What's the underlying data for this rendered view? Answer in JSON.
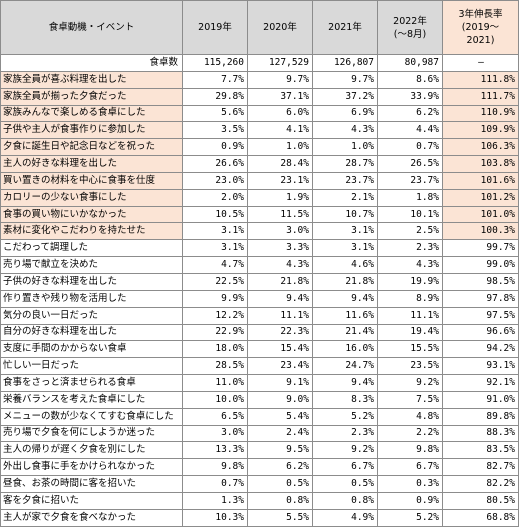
{
  "header": {
    "event": "食卓動機・イベント",
    "y2019": "2019年",
    "y2020": "2020年",
    "y2021": "2021年",
    "y2022_line1": "2022年",
    "y2022_line2": "(〜8月)",
    "growth_line1": "3年伸長率",
    "growth_line2": "(2019〜",
    "growth_line3": "2021)"
  },
  "count_row": {
    "label": "食卓数",
    "v2019": "115,260",
    "v2020": "127,529",
    "v2021": "126,807",
    "v2022": "80,987",
    "growth": "—"
  },
  "rows": [
    {
      "label": "家族全員が喜ぶ料理を出した",
      "v2019": "7.7%",
      "v2020": "9.7%",
      "v2021": "9.7%",
      "v2022": "8.6%",
      "growth": "111.8%",
      "hl": true
    },
    {
      "label": "家族全員が揃った夕食だった",
      "v2019": "29.8%",
      "v2020": "37.1%",
      "v2021": "37.2%",
      "v2022": "33.9%",
      "growth": "111.7%",
      "hl": true
    },
    {
      "label": "家族みんなで楽しめる食卓にした",
      "v2019": "5.6%",
      "v2020": "6.0%",
      "v2021": "6.9%",
      "v2022": "6.2%",
      "growth": "110.9%",
      "hl": true
    },
    {
      "label": "子供や主人が食事作りに参加した",
      "v2019": "3.5%",
      "v2020": "4.1%",
      "v2021": "4.3%",
      "v2022": "4.4%",
      "growth": "109.9%",
      "hl": true
    },
    {
      "label": "夕食に誕生日や記念日などを祝った",
      "v2019": "0.9%",
      "v2020": "1.0%",
      "v2021": "1.0%",
      "v2022": "0.7%",
      "growth": "106.3%",
      "hl": true
    },
    {
      "label": "主人の好きな料理を出した",
      "v2019": "26.6%",
      "v2020": "28.4%",
      "v2021": "28.7%",
      "v2022": "26.5%",
      "growth": "103.8%",
      "hl": true
    },
    {
      "label": "買い置きの材料を中心に食事を仕度",
      "v2019": "23.0%",
      "v2020": "23.1%",
      "v2021": "23.7%",
      "v2022": "23.7%",
      "growth": "101.6%",
      "hl": true
    },
    {
      "label": "カロリーの少ない食事にした",
      "v2019": "2.0%",
      "v2020": "1.9%",
      "v2021": "2.1%",
      "v2022": "1.8%",
      "growth": "101.2%",
      "hl": true
    },
    {
      "label": "食事の買い物にいかなかった",
      "v2019": "10.5%",
      "v2020": "11.5%",
      "v2021": "10.7%",
      "v2022": "10.1%",
      "growth": "101.0%",
      "hl": true
    },
    {
      "label": "素材に変化やこだわりを持たせた",
      "v2019": "3.1%",
      "v2020": "3.0%",
      "v2021": "3.1%",
      "v2022": "2.5%",
      "growth": "100.3%",
      "hl": true
    },
    {
      "label": "こだわって調理した",
      "v2019": "3.1%",
      "v2020": "3.3%",
      "v2021": "3.1%",
      "v2022": "2.3%",
      "growth": "99.7%",
      "hl": false
    },
    {
      "label": "売り場で献立を決めた",
      "v2019": "4.7%",
      "v2020": "4.3%",
      "v2021": "4.6%",
      "v2022": "4.3%",
      "growth": "99.0%",
      "hl": false
    },
    {
      "label": "子供の好きな料理を出した",
      "v2019": "22.5%",
      "v2020": "21.8%",
      "v2021": "21.8%",
      "v2022": "19.9%",
      "growth": "98.5%",
      "hl": false
    },
    {
      "label": "作り置きや残り物を活用した",
      "v2019": "9.9%",
      "v2020": "9.4%",
      "v2021": "9.4%",
      "v2022": "8.9%",
      "growth": "97.8%",
      "hl": false
    },
    {
      "label": "気分の良い一日だった",
      "v2019": "12.2%",
      "v2020": "11.1%",
      "v2021": "11.6%",
      "v2022": "11.1%",
      "growth": "97.5%",
      "hl": false
    },
    {
      "label": "自分の好きな料理を出した",
      "v2019": "22.9%",
      "v2020": "22.3%",
      "v2021": "21.4%",
      "v2022": "19.4%",
      "growth": "96.6%",
      "hl": false
    },
    {
      "label": "支度に手間のかからない食卓",
      "v2019": "18.0%",
      "v2020": "15.4%",
      "v2021": "16.0%",
      "v2022": "15.5%",
      "growth": "94.2%",
      "hl": false
    },
    {
      "label": "忙しい一日だった",
      "v2019": "28.5%",
      "v2020": "23.4%",
      "v2021": "24.7%",
      "v2022": "23.5%",
      "growth": "93.1%",
      "hl": false
    },
    {
      "label": "食事をさっと済ませられる食卓",
      "v2019": "11.0%",
      "v2020": "9.1%",
      "v2021": "9.4%",
      "v2022": "9.2%",
      "growth": "92.1%",
      "hl": false
    },
    {
      "label": "栄養バランスを考えた食卓にした",
      "v2019": "10.0%",
      "v2020": "9.0%",
      "v2021": "8.3%",
      "v2022": "7.5%",
      "growth": "91.0%",
      "hl": false
    },
    {
      "label": "メニューの数が少なくてすむ食卓にした",
      "v2019": "6.5%",
      "v2020": "5.4%",
      "v2021": "5.2%",
      "v2022": "4.8%",
      "growth": "89.8%",
      "hl": false
    },
    {
      "label": "売り場で夕食を何にしようか迷った",
      "v2019": "3.0%",
      "v2020": "2.4%",
      "v2021": "2.3%",
      "v2022": "2.2%",
      "growth": "88.3%",
      "hl": false
    },
    {
      "label": "主人の帰りが遅く夕食を別にした",
      "v2019": "13.3%",
      "v2020": "9.5%",
      "v2021": "9.2%",
      "v2022": "9.8%",
      "growth": "83.5%",
      "hl": false
    },
    {
      "label": "外出し食事に手をかけられなかった",
      "v2019": "9.8%",
      "v2020": "6.2%",
      "v2021": "6.7%",
      "v2022": "6.7%",
      "growth": "82.7%",
      "hl": false
    },
    {
      "label": "昼食、お茶の時間に客を招いた",
      "v2019": "0.7%",
      "v2020": "0.5%",
      "v2021": "0.5%",
      "v2022": "0.3%",
      "growth": "82.2%",
      "hl": false
    },
    {
      "label": "客を夕食に招いた",
      "v2019": "1.3%",
      "v2020": "0.8%",
      "v2021": "0.8%",
      "v2022": "0.9%",
      "growth": "80.5%",
      "hl": false
    },
    {
      "label": "主人が家で夕食を食べなかった",
      "v2019": "10.3%",
      "v2020": "5.5%",
      "v2021": "4.9%",
      "v2022": "5.2%",
      "growth": "68.8%",
      "hl": false
    }
  ]
}
